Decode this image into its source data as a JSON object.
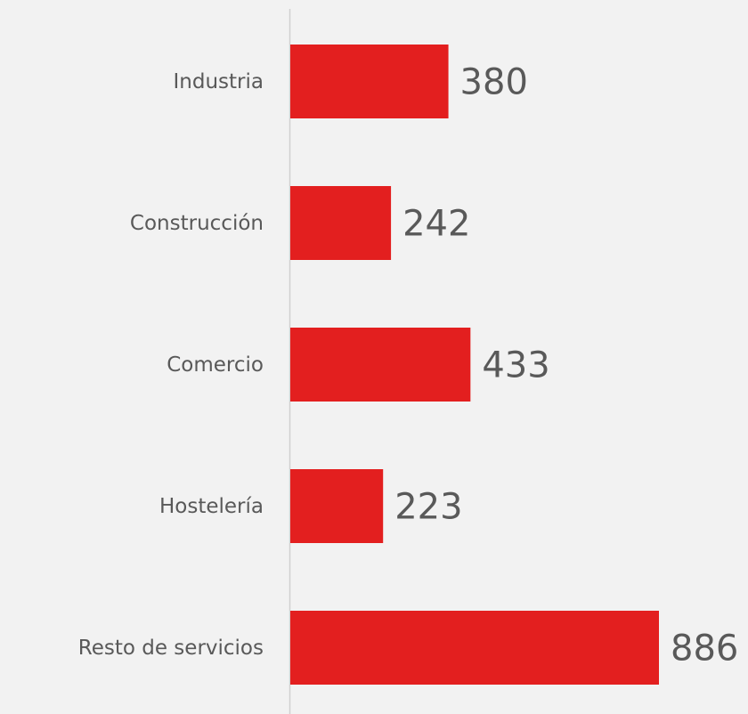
{
  "chart_data": {
    "type": "bar",
    "orientation": "horizontal",
    "categories": [
      "Industria",
      "Construcción",
      "Comercio",
      "Hostelería",
      "Resto de servicios"
    ],
    "values": [
      380,
      242,
      433,
      223,
      886
    ],
    "color": "#e31f1f"
  }
}
